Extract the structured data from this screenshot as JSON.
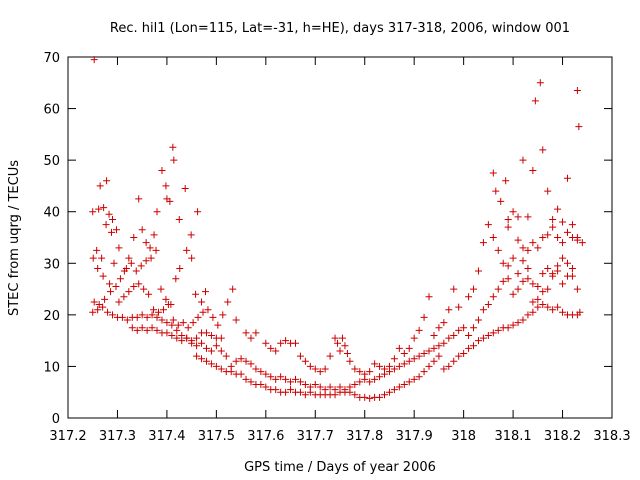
{
  "chart_data": {
    "type": "scatter",
    "title": "Rec. hil1 (Lon=115, Lat=-31, h=HE), days 317-318, 2006, window 001",
    "xlabel": "GPS time / Days of year 2006",
    "ylabel": "STEC from uqrg / TECUs",
    "xlim": [
      317.2,
      318.3
    ],
    "ylim": [
      0,
      70
    ],
    "xticks": [
      "317.2",
      "317.3",
      "317.4",
      "317.5",
      "317.6",
      "317.7",
      "317.8",
      "317.9",
      "318",
      "318.1",
      "318.2",
      "318.3"
    ],
    "yticks": [
      "0",
      "10",
      "20",
      "30",
      "40",
      "50",
      "60",
      "70"
    ],
    "marker": "+",
    "color": "#cc0000",
    "grid": false,
    "points": [
      [
        317.253,
        69.5
      ],
      [
        317.265,
        45.0
      ],
      [
        317.278,
        46.0
      ],
      [
        317.25,
        40.0
      ],
      [
        317.262,
        40.5
      ],
      [
        317.272,
        40.8
      ],
      [
        317.283,
        39.5
      ],
      [
        317.258,
        32.5
      ],
      [
        317.268,
        31.0
      ],
      [
        317.277,
        37.5
      ],
      [
        317.288,
        36.0
      ],
      [
        317.251,
        31.0
      ],
      [
        317.26,
        29.0
      ],
      [
        317.271,
        27.5
      ],
      [
        317.284,
        26.0
      ],
      [
        317.293,
        30.0
      ],
      [
        317.303,
        33.0
      ],
      [
        317.298,
        36.5
      ],
      [
        317.29,
        38.5
      ],
      [
        317.253,
        22.5
      ],
      [
        317.263,
        22.0
      ],
      [
        317.274,
        23.0
      ],
      [
        317.286,
        24.5
      ],
      [
        317.297,
        25.5
      ],
      [
        317.306,
        27.0
      ],
      [
        317.314,
        28.5
      ],
      [
        317.323,
        31.0
      ],
      [
        317.333,
        35.0
      ],
      [
        317.343,
        42.5
      ],
      [
        317.35,
        36.5
      ],
      [
        317.358,
        34.0
      ],
      [
        317.366,
        33.0
      ],
      [
        317.374,
        35.5
      ],
      [
        317.38,
        40.0
      ],
      [
        317.39,
        48.0
      ],
      [
        317.398,
        45.0
      ],
      [
        317.4,
        42.5
      ],
      [
        317.406,
        42.0
      ],
      [
        317.412,
        52.5
      ],
      [
        317.414,
        50.0
      ],
      [
        317.425,
        38.5
      ],
      [
        317.437,
        44.5
      ],
      [
        317.449,
        35.5
      ],
      [
        317.462,
        40.0
      ],
      [
        317.318,
        29.0
      ],
      [
        317.328,
        30.0
      ],
      [
        317.338,
        28.5
      ],
      [
        317.348,
        29.5
      ],
      [
        317.358,
        30.5
      ],
      [
        317.368,
        31.0
      ],
      [
        317.378,
        32.5
      ],
      [
        317.388,
        25.0
      ],
      [
        317.398,
        23.0
      ],
      [
        317.408,
        22.0
      ],
      [
        317.418,
        27.0
      ],
      [
        317.426,
        29.0
      ],
      [
        317.44,
        32.5
      ],
      [
        317.45,
        31.0
      ],
      [
        317.458,
        24.0
      ],
      [
        317.47,
        22.5
      ],
      [
        317.478,
        24.5
      ],
      [
        317.25,
        20.5
      ],
      [
        317.26,
        21.0
      ],
      [
        317.27,
        21.5
      ],
      [
        317.28,
        20.5
      ],
      [
        317.29,
        20.0
      ],
      [
        317.3,
        19.5
      ],
      [
        317.31,
        19.5
      ],
      [
        317.32,
        19.0
      ],
      [
        317.33,
        19.5
      ],
      [
        317.34,
        19.5
      ],
      [
        317.35,
        20.0
      ],
      [
        317.36,
        19.5
      ],
      [
        317.37,
        20.0
      ],
      [
        317.38,
        19.5
      ],
      [
        317.39,
        19.0
      ],
      [
        317.4,
        18.5
      ],
      [
        317.41,
        18.0
      ],
      [
        317.42,
        17.0
      ],
      [
        317.43,
        16.0
      ],
      [
        317.44,
        15.5
      ],
      [
        317.45,
        15.0
      ],
      [
        317.303,
        22.5
      ],
      [
        317.313,
        23.5
      ],
      [
        317.323,
        24.5
      ],
      [
        317.333,
        25.5
      ],
      [
        317.343,
        26.0
      ],
      [
        317.353,
        25.0
      ],
      [
        317.363,
        24.0
      ],
      [
        317.373,
        21.0
      ],
      [
        317.383,
        20.5
      ],
      [
        317.393,
        21.0
      ],
      [
        317.403,
        22.0
      ],
      [
        317.413,
        19.0
      ],
      [
        317.423,
        18.0
      ],
      [
        317.433,
        18.5
      ],
      [
        317.443,
        17.5
      ],
      [
        317.453,
        18.5
      ],
      [
        317.463,
        19.5
      ],
      [
        317.473,
        20.5
      ],
      [
        317.483,
        21.0
      ],
      [
        317.493,
        19.5
      ],
      [
        317.503,
        18.0
      ],
      [
        317.513,
        20.0
      ],
      [
        317.523,
        22.5
      ],
      [
        317.533,
        25.0
      ],
      [
        317.33,
        17.5
      ],
      [
        317.34,
        17.0
      ],
      [
        317.35,
        17.5
      ],
      [
        317.36,
        17.0
      ],
      [
        317.37,
        17.5
      ],
      [
        317.38,
        17.0
      ],
      [
        317.39,
        16.5
      ],
      [
        317.4,
        16.5
      ],
      [
        317.41,
        16.0
      ],
      [
        317.42,
        15.5
      ],
      [
        317.43,
        15.0
      ],
      [
        317.44,
        15.5
      ],
      [
        317.45,
        14.5
      ],
      [
        317.46,
        14.0
      ],
      [
        317.47,
        14.5
      ],
      [
        317.48,
        13.5
      ],
      [
        317.49,
        13.0
      ],
      [
        317.5,
        14.0
      ],
      [
        317.51,
        13.0
      ],
      [
        317.52,
        12.0
      ],
      [
        317.46,
        15.5
      ],
      [
        317.47,
        16.5
      ],
      [
        317.48,
        16.5
      ],
      [
        317.49,
        16.0
      ],
      [
        317.5,
        15.5
      ],
      [
        317.51,
        15.5
      ],
      [
        317.54,
        19.0
      ],
      [
        317.56,
        16.5
      ],
      [
        317.57,
        15.5
      ],
      [
        317.58,
        16.5
      ],
      [
        317.46,
        12.0
      ],
      [
        317.47,
        11.5
      ],
      [
        317.48,
        11.0
      ],
      [
        317.49,
        10.5
      ],
      [
        317.5,
        10.0
      ],
      [
        317.51,
        9.5
      ],
      [
        317.52,
        9.0
      ],
      [
        317.53,
        9.0
      ],
      [
        317.54,
        8.5
      ],
      [
        317.55,
        8.5
      ],
      [
        317.56,
        7.5
      ],
      [
        317.57,
        7.0
      ],
      [
        317.58,
        6.5
      ],
      [
        317.59,
        6.5
      ],
      [
        317.6,
        6.0
      ],
      [
        317.61,
        5.5
      ],
      [
        317.62,
        5.5
      ],
      [
        317.63,
        5.0
      ],
      [
        317.64,
        5.0
      ],
      [
        317.65,
        5.5
      ],
      [
        317.66,
        5.0
      ],
      [
        317.67,
        5.0
      ],
      [
        317.68,
        4.5
      ],
      [
        317.69,
        5.0
      ],
      [
        317.7,
        4.5
      ],
      [
        317.71,
        4.5
      ],
      [
        317.72,
        4.5
      ],
      [
        317.73,
        4.5
      ],
      [
        317.74,
        4.5
      ],
      [
        317.75,
        5.0
      ],
      [
        317.76,
        5.0
      ],
      [
        317.77,
        5.0
      ],
      [
        317.78,
        4.5
      ],
      [
        317.79,
        4.0
      ],
      [
        317.8,
        4.0
      ],
      [
        317.81,
        3.8
      ],
      [
        317.82,
        4.0
      ],
      [
        317.83,
        4.0
      ],
      [
        317.84,
        4.5
      ],
      [
        317.85,
        5.0
      ],
      [
        317.86,
        5.5
      ],
      [
        317.87,
        6.0
      ],
      [
        317.88,
        6.5
      ],
      [
        317.89,
        7.0
      ],
      [
        317.9,
        7.5
      ],
      [
        317.91,
        8.0
      ],
      [
        317.92,
        9.0
      ],
      [
        317.93,
        10.0
      ],
      [
        317.94,
        11.0
      ],
      [
        317.95,
        12.0
      ],
      [
        317.53,
        10.0
      ],
      [
        317.54,
        11.0
      ],
      [
        317.55,
        11.5
      ],
      [
        317.56,
        11.0
      ],
      [
        317.57,
        10.5
      ],
      [
        317.58,
        9.5
      ],
      [
        317.59,
        9.0
      ],
      [
        317.6,
        8.5
      ],
      [
        317.61,
        8.0
      ],
      [
        317.62,
        7.5
      ],
      [
        317.63,
        8.0
      ],
      [
        317.64,
        7.5
      ],
      [
        317.65,
        7.0
      ],
      [
        317.66,
        7.5
      ],
      [
        317.67,
        7.0
      ],
      [
        317.68,
        6.5
      ],
      [
        317.69,
        6.0
      ],
      [
        317.7,
        6.5
      ],
      [
        317.71,
        6.0
      ],
      [
        317.72,
        5.5
      ],
      [
        317.73,
        6.0
      ],
      [
        317.74,
        5.5
      ],
      [
        317.75,
        6.0
      ],
      [
        317.76,
        5.5
      ],
      [
        317.77,
        6.0
      ],
      [
        317.78,
        6.5
      ],
      [
        317.79,
        7.0
      ],
      [
        317.8,
        7.5
      ],
      [
        317.81,
        7.0
      ],
      [
        317.82,
        7.5
      ],
      [
        317.83,
        8.0
      ],
      [
        317.84,
        8.5
      ],
      [
        317.85,
        9.0
      ],
      [
        317.86,
        9.5
      ],
      [
        317.87,
        10.0
      ],
      [
        317.88,
        10.5
      ],
      [
        317.89,
        11.0
      ],
      [
        317.9,
        11.5
      ],
      [
        317.91,
        12.0
      ],
      [
        317.92,
        12.5
      ],
      [
        317.93,
        13.0
      ],
      [
        317.94,
        13.5
      ],
      [
        317.95,
        14.0
      ],
      [
        317.6,
        14.5
      ],
      [
        317.61,
        13.5
      ],
      [
        317.62,
        13.0
      ],
      [
        317.63,
        14.5
      ],
      [
        317.64,
        15.0
      ],
      [
        317.65,
        14.5
      ],
      [
        317.66,
        14.5
      ],
      [
        317.67,
        12.0
      ],
      [
        317.68,
        11.0
      ],
      [
        317.69,
        10.0
      ],
      [
        317.7,
        9.5
      ],
      [
        317.71,
        9.0
      ],
      [
        317.72,
        9.5
      ],
      [
        317.73,
        12.0
      ],
      [
        317.74,
        15.5
      ],
      [
        317.745,
        14.5
      ],
      [
        317.75,
        13.0
      ],
      [
        317.755,
        15.5
      ],
      [
        317.76,
        14.0
      ],
      [
        317.765,
        12.5
      ],
      [
        317.77,
        11.0
      ],
      [
        317.78,
        9.5
      ],
      [
        317.79,
        9.0
      ],
      [
        317.8,
        8.5
      ],
      [
        317.81,
        9.0
      ],
      [
        317.82,
        10.5
      ],
      [
        317.83,
        10.0
      ],
      [
        317.84,
        9.5
      ],
      [
        317.85,
        10.0
      ],
      [
        317.86,
        11.5
      ],
      [
        317.87,
        13.5
      ],
      [
        317.88,
        12.5
      ],
      [
        317.89,
        13.5
      ],
      [
        317.9,
        15.5
      ],
      [
        317.91,
        17.0
      ],
      [
        317.92,
        19.5
      ],
      [
        317.93,
        23.5
      ],
      [
        317.94,
        16.0
      ],
      [
        317.95,
        17.5
      ],
      [
        317.96,
        18.5
      ],
      [
        317.97,
        21.0
      ],
      [
        317.98,
        25.0
      ],
      [
        317.99,
        21.5
      ],
      [
        317.96,
        9.5
      ],
      [
        317.97,
        10.0
      ],
      [
        317.98,
        11.0
      ],
      [
        317.99,
        12.0
      ],
      [
        318.0,
        12.5
      ],
      [
        318.01,
        13.5
      ],
      [
        318.02,
        14.0
      ],
      [
        318.03,
        15.0
      ],
      [
        318.04,
        15.5
      ],
      [
        318.05,
        16.0
      ],
      [
        318.06,
        16.5
      ],
      [
        318.07,
        17.0
      ],
      [
        318.08,
        17.5
      ],
      [
        318.09,
        17.5
      ],
      [
        318.1,
        18.0
      ],
      [
        318.11,
        18.5
      ],
      [
        318.12,
        19.0
      ],
      [
        318.13,
        20.0
      ],
      [
        318.14,
        20.5
      ],
      [
        318.15,
        21.5
      ],
      [
        318.16,
        22.0
      ],
      [
        318.17,
        21.5
      ],
      [
        318.18,
        21.0
      ],
      [
        318.19,
        21.5
      ],
      [
        318.2,
        20.5
      ],
      [
        318.21,
        20.0
      ],
      [
        318.22,
        20.0
      ],
      [
        318.23,
        20.0
      ],
      [
        318.235,
        20.5
      ],
      [
        317.96,
        14.5
      ],
      [
        317.97,
        15.5
      ],
      [
        317.98,
        16.0
      ],
      [
        317.99,
        17.0
      ],
      [
        318.0,
        17.5
      ],
      [
        318.01,
        16.0
      ],
      [
        318.02,
        17.5
      ],
      [
        318.03,
        19.0
      ],
      [
        318.04,
        21.0
      ],
      [
        318.05,
        22.0
      ],
      [
        318.06,
        23.5
      ],
      [
        318.07,
        25.0
      ],
      [
        318.08,
        26.5
      ],
      [
        318.09,
        27.0
      ],
      [
        318.1,
        24.0
      ],
      [
        318.11,
        25.0
      ],
      [
        318.12,
        26.5
      ],
      [
        318.13,
        27.0
      ],
      [
        318.14,
        26.0
      ],
      [
        318.15,
        25.5
      ],
      [
        318.16,
        28.0
      ],
      [
        318.17,
        29.0
      ],
      [
        318.18,
        27.5
      ],
      [
        318.19,
        29.5
      ],
      [
        318.2,
        31.0
      ],
      [
        318.21,
        30.0
      ],
      [
        318.22,
        27.5
      ],
      [
        318.23,
        25.0
      ],
      [
        318.01,
        23.5
      ],
      [
        318.02,
        25.0
      ],
      [
        318.03,
        28.5
      ],
      [
        318.04,
        34.0
      ],
      [
        318.05,
        37.5
      ],
      [
        318.06,
        35.0
      ],
      [
        318.07,
        32.5
      ],
      [
        318.08,
        30.0
      ],
      [
        318.09,
        29.5
      ],
      [
        318.1,
        31.0
      ],
      [
        318.11,
        28.0
      ],
      [
        318.12,
        30.5
      ],
      [
        318.13,
        32.5
      ],
      [
        318.14,
        34.0
      ],
      [
        318.15,
        33.0
      ],
      [
        318.16,
        35.0
      ],
      [
        318.17,
        35.5
      ],
      [
        318.18,
        37.0
      ],
      [
        318.19,
        35.0
      ],
      [
        318.2,
        34.0
      ],
      [
        318.21,
        36.0
      ],
      [
        318.22,
        35.0
      ],
      [
        318.23,
        34.5
      ],
      [
        318.06,
        47.5
      ],
      [
        318.065,
        44.0
      ],
      [
        318.075,
        42.0
      ],
      [
        318.085,
        46.0
      ],
      [
        318.09,
        38.5
      ],
      [
        318.1,
        40.0
      ],
      [
        318.11,
        39.0
      ],
      [
        318.12,
        50.0
      ],
      [
        318.13,
        39.0
      ],
      [
        318.14,
        48.0
      ],
      [
        318.145,
        61.5
      ],
      [
        318.155,
        65.0
      ],
      [
        318.16,
        52.0
      ],
      [
        318.17,
        44.0
      ],
      [
        318.18,
        38.5
      ],
      [
        318.19,
        40.5
      ],
      [
        318.2,
        38.0
      ],
      [
        318.21,
        46.5
      ],
      [
        318.22,
        37.5
      ],
      [
        318.23,
        63.5
      ],
      [
        318.233,
        56.5
      ],
      [
        318.23,
        35.0
      ],
      [
        318.24,
        34.0
      ],
      [
        318.09,
        37.0
      ],
      [
        318.11,
        34.5
      ],
      [
        318.12,
        33.0
      ],
      [
        318.13,
        29.0
      ],
      [
        318.14,
        22.5
      ],
      [
        318.15,
        23.0
      ],
      [
        318.16,
        24.5
      ],
      [
        318.17,
        25.0
      ],
      [
        318.18,
        28.0
      ],
      [
        318.19,
        28.5
      ],
      [
        318.2,
        26.0
      ],
      [
        318.21,
        27.5
      ],
      [
        318.22,
        29.0
      ]
    ]
  }
}
